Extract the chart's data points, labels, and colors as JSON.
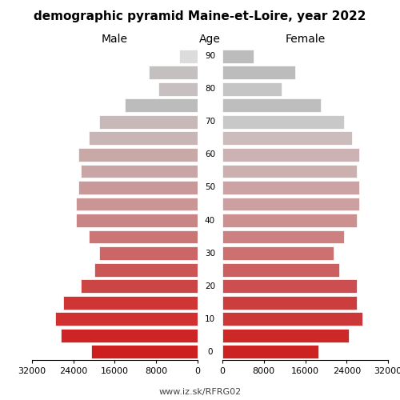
{
  "title": "demographic pyramid Maine-et-Loire, year 2022",
  "male_label": "Male",
  "female_label": "Female",
  "age_label": "Age",
  "footer": "www.iz.sk/RFRG02",
  "age_groups": [
    0,
    5,
    10,
    15,
    20,
    25,
    30,
    35,
    40,
    45,
    50,
    55,
    60,
    65,
    70,
    75,
    80,
    85,
    90
  ],
  "male_values": [
    20500,
    26500,
    27500,
    26000,
    22500,
    20000,
    19000,
    21000,
    23500,
    23500,
    23000,
    22500,
    23000,
    21000,
    19000,
    14000,
    7500,
    9500,
    3500
  ],
  "female_values": [
    18500,
    24500,
    27000,
    26000,
    26000,
    22500,
    21500,
    23500,
    26000,
    26500,
    26500,
    26000,
    26500,
    25000,
    23500,
    19000,
    11500,
    14000,
    6000
  ],
  "xlim": 32000,
  "background_color": "#ffffff",
  "male_colors": [
    "#cd1f1f",
    "#cd2525",
    "#d03030",
    "#d03535",
    "#cc4545",
    "#cc5555",
    "#cc6565",
    "#cc7575",
    "#c98585",
    "#c99595",
    "#c99898",
    "#c9a5a5",
    "#c9a8a8",
    "#c9b5b5",
    "#c9b8b8",
    "#bcbcbc",
    "#c8c0c0",
    "#c5c0c0",
    "#dcdcdc"
  ],
  "female_colors": [
    "#cd2222",
    "#cd2828",
    "#cc3838",
    "#cc3e3e",
    "#cc4e4e",
    "#cc6060",
    "#cc7070",
    "#cc8080",
    "#cc9090",
    "#cca0a0",
    "#cca2a2",
    "#ccb0b0",
    "#ccb2b2",
    "#ccbcbc",
    "#c8c8c8",
    "#bebebe",
    "#c5c5c5",
    "#bcbcbc",
    "#bcbcbc"
  ],
  "xticks": [
    0,
    8000,
    16000,
    24000,
    32000
  ],
  "xtick_labels": [
    "0",
    "8000",
    "16000",
    "24000",
    "32000"
  ],
  "age_tick_labels": [
    0,
    10,
    20,
    30,
    40,
    50,
    60,
    70,
    80,
    90
  ]
}
